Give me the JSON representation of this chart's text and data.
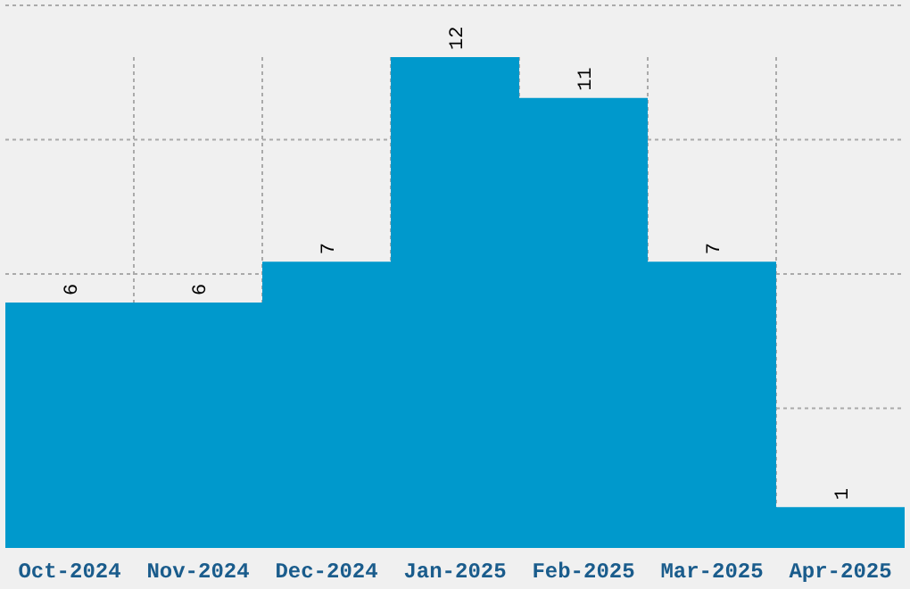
{
  "chart_data": {
    "type": "bar",
    "categories": [
      "Oct-2024",
      "Nov-2024",
      "Dec-2024",
      "Jan-2025",
      "Feb-2025",
      "Mar-2025",
      "Apr-2025"
    ],
    "values": [
      6,
      6,
      7,
      12,
      11,
      7,
      1
    ],
    "color": "#0099cc",
    "grid": true,
    "tick_labels": "x",
    "data_labels": true
  }
}
